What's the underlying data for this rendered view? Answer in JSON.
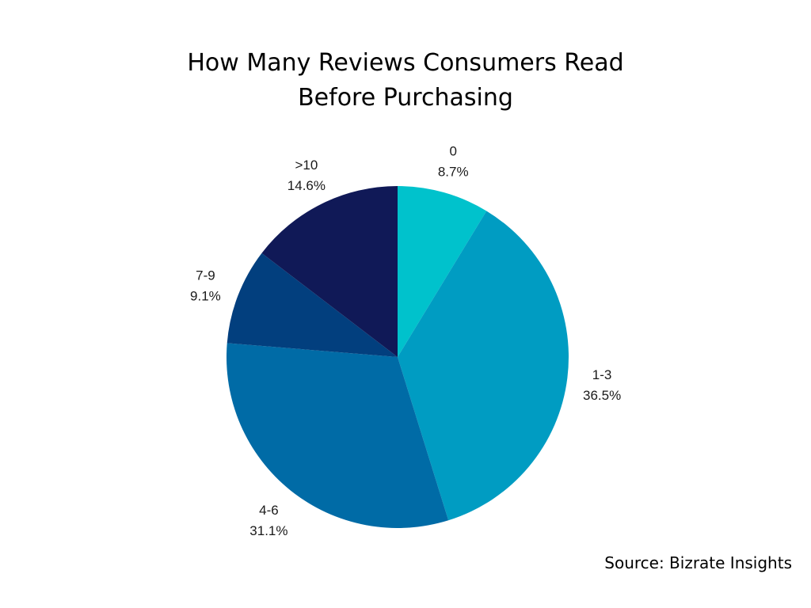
{
  "title": {
    "line1": "How Many Reviews Consumers Read",
    "line2": "Before Purchasing"
  },
  "source": "Source: Bizrate Insights",
  "chart_data": {
    "type": "pie",
    "title": "How Many Reviews Consumers Read Before Purchasing",
    "categories": [
      "0",
      "1-3",
      "4-6",
      "7-9",
      ">10"
    ],
    "values": [
      8.7,
      36.5,
      31.1,
      9.1,
      14.6
    ],
    "value_labels": [
      "8.7%",
      "36.5%",
      "31.1%",
      "9.1%",
      "14.6%"
    ],
    "unit": "%",
    "start_angle": "12 o'clock",
    "direction": "clockwise",
    "colors": [
      "#00c2cc",
      "#009cc2",
      "#006ba6",
      "#023f7e",
      "#101957"
    ],
    "legend": "none"
  }
}
